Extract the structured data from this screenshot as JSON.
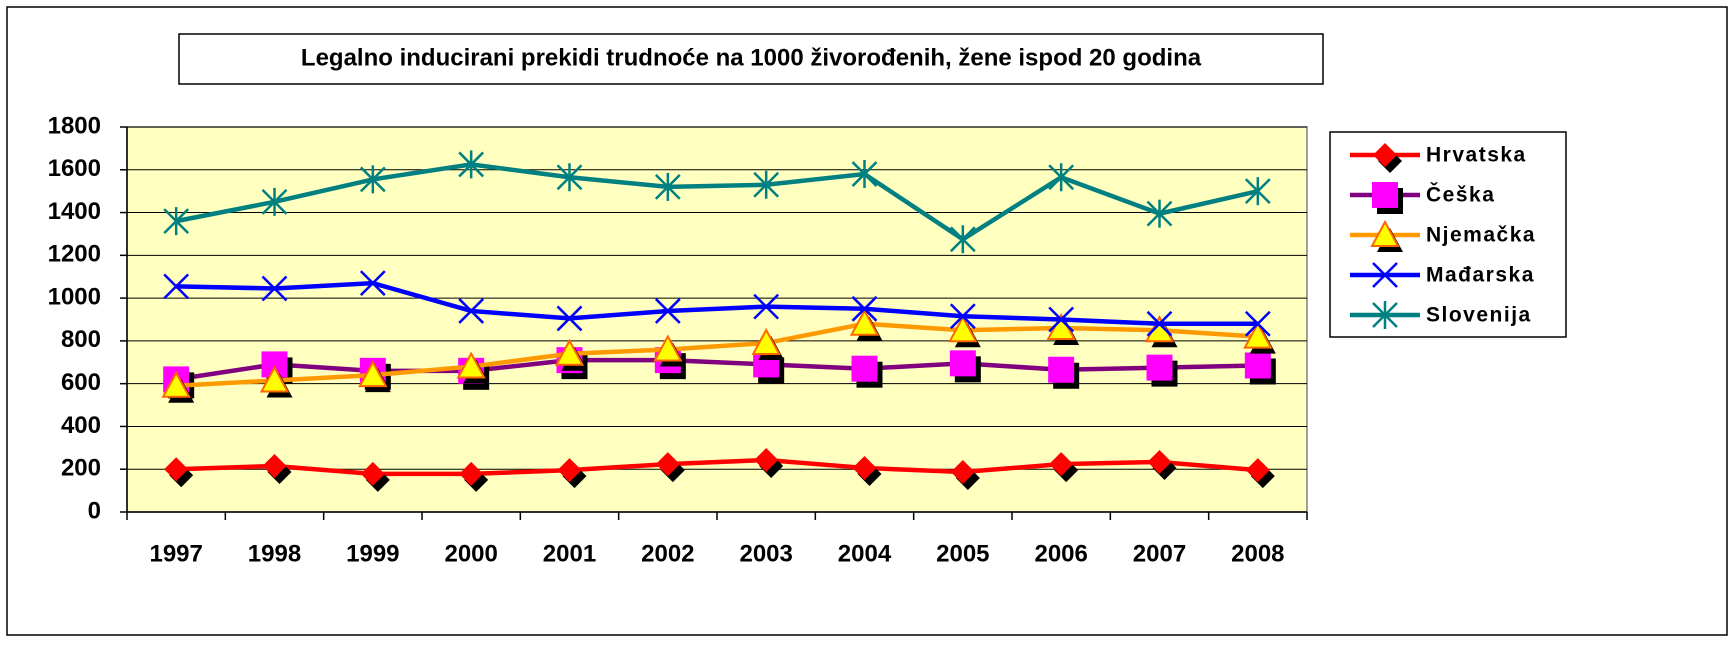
{
  "chart_data": {
    "type": "line",
    "title": "Legalno inducirani prekidi trudnoće na 1000 živorođenih, žene ispod 20 godina",
    "categories": [
      "1997",
      "1998",
      "1999",
      "2000",
      "2001",
      "2002",
      "2003",
      "2004",
      "2005",
      "2006",
      "2007",
      "2008"
    ],
    "series": [
      {
        "name": "Hrvatska",
        "color": "#ff0000",
        "marker": "diamond",
        "marker_color": "#ff0000",
        "values": [
          200,
          215,
          178,
          178,
          196,
          224,
          243,
          206,
          187,
          224,
          234,
          196
        ]
      },
      {
        "name": "Češka",
        "color": "#800080",
        "marker": "square",
        "marker_color": "#ff00ff",
        "values": [
          620,
          690,
          660,
          660,
          710,
          710,
          690,
          670,
          695,
          665,
          675,
          685
        ]
      },
      {
        "name": "Njemačka",
        "color": "#ff9900",
        "marker": "triangle",
        "marker_color": "#ffff00",
        "values": [
          590,
          615,
          640,
          680,
          740,
          760,
          790,
          880,
          850,
          860,
          850,
          820
        ]
      },
      {
        "name": "Mađarska",
        "color": "#0000ff",
        "marker": "x",
        "marker_color": "#0000ff",
        "values": [
          1055,
          1045,
          1070,
          940,
          905,
          940,
          960,
          950,
          915,
          900,
          880,
          880
        ]
      },
      {
        "name": "Slovenija",
        "color": "#008080",
        "marker": "asterisk",
        "marker_color": "#008080",
        "values": [
          1360,
          1450,
          1555,
          1625,
          1565,
          1520,
          1530,
          1580,
          1275,
          1565,
          1395,
          1500
        ]
      }
    ],
    "ylim": [
      0,
      1800
    ],
    "yticks": [
      0,
      200,
      400,
      600,
      800,
      1000,
      1200,
      1400,
      1600,
      1800
    ],
    "grid": true,
    "legend": "right"
  }
}
